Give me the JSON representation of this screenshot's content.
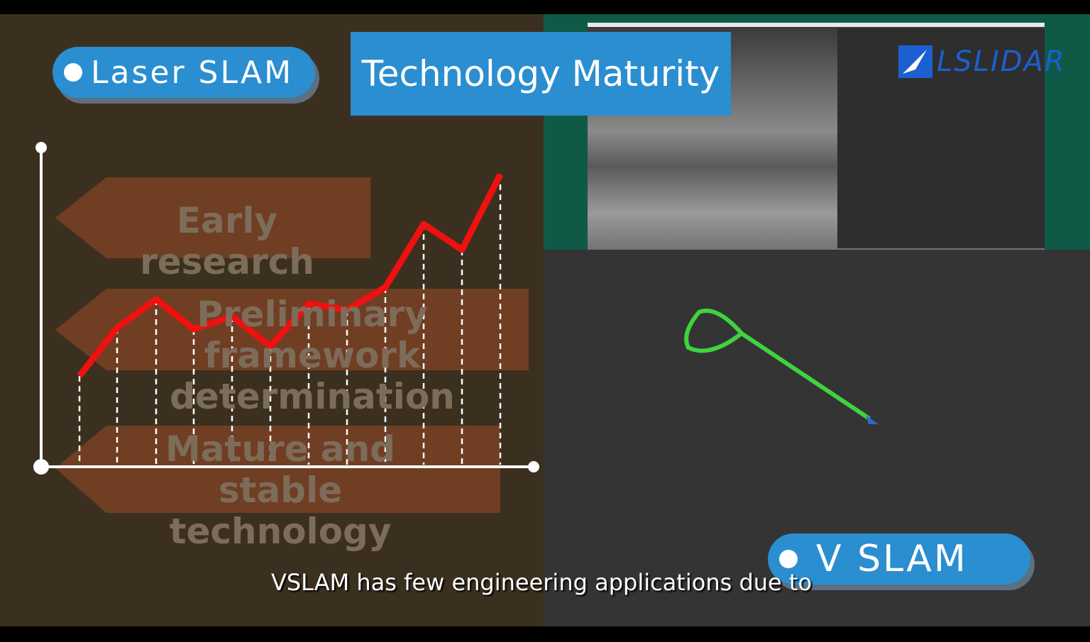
{
  "header": {
    "title": "Technology Maturity",
    "logo": "LSLIDAR"
  },
  "left_panel": {
    "label": "Laser SLAM",
    "stages": [
      "Early research",
      "Preliminary framework determination",
      "Mature and stable technology"
    ]
  },
  "right_panel": {
    "label": "V SLAM"
  },
  "caption": "VSLAM has few engineering applications due to"
}
